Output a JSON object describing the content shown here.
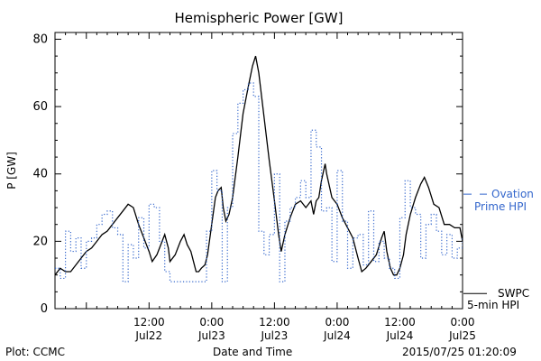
{
  "chart_data": {
    "type": "line",
    "title": "Hemispheric Power [GW]",
    "ylabel": "P [GW]",
    "xlabel": "Date and Time",
    "ylim": [
      0,
      82
    ],
    "yticks": [
      0,
      20,
      40,
      60,
      80
    ],
    "xlim": [
      -18,
      60
    ],
    "xticks": [
      {
        "x": 0,
        "top": "12:00",
        "bottom": "Jul22"
      },
      {
        "x": 12,
        "top": "0:00",
        "bottom": "Jul23"
      },
      {
        "x": 24,
        "top": "12:00",
        "bottom": "Jul23"
      },
      {
        "x": 36,
        "top": "0:00",
        "bottom": "Jul24"
      },
      {
        "x": 48,
        "top": "12:00",
        "bottom": "Jul24"
      },
      {
        "x": 60,
        "top": "0:00",
        "bottom": "Jul25"
      }
    ],
    "series": [
      {
        "name": "SWPC 5-min HPI",
        "color": "#000000",
        "style": "solid",
        "points": [
          [
            -18,
            10
          ],
          [
            -17,
            12
          ],
          [
            -16,
            11
          ],
          [
            -15,
            11
          ],
          [
            -14,
            13
          ],
          [
            -13,
            15
          ],
          [
            -12,
            17
          ],
          [
            -11,
            18
          ],
          [
            -10,
            20
          ],
          [
            -9,
            22
          ],
          [
            -8,
            23
          ],
          [
            -7,
            25
          ],
          [
            -6,
            27
          ],
          [
            -5,
            29
          ],
          [
            -4,
            31
          ],
          [
            -3,
            30
          ],
          [
            -2,
            25
          ],
          [
            -1,
            21
          ],
          [
            0,
            17
          ],
          [
            0.6,
            14
          ],
          [
            1.5,
            16
          ],
          [
            2.5,
            20
          ],
          [
            3,
            22
          ],
          [
            3.7,
            18
          ],
          [
            4,
            14
          ],
          [
            5,
            16
          ],
          [
            6,
            20
          ],
          [
            6.7,
            22
          ],
          [
            7.3,
            19
          ],
          [
            8,
            17
          ],
          [
            8.5,
            14
          ],
          [
            9,
            11
          ],
          [
            9.5,
            11
          ],
          [
            10,
            12
          ],
          [
            10.7,
            13
          ],
          [
            11.2,
            16
          ],
          [
            12,
            25
          ],
          [
            12.7,
            33
          ],
          [
            13.2,
            35
          ],
          [
            13.8,
            36
          ],
          [
            14.2,
            30
          ],
          [
            14.7,
            26
          ],
          [
            15.3,
            28
          ],
          [
            16,
            33
          ],
          [
            17,
            45
          ],
          [
            18,
            58
          ],
          [
            19,
            66
          ],
          [
            19.8,
            72
          ],
          [
            20.4,
            75
          ],
          [
            21,
            70
          ],
          [
            22,
            57
          ],
          [
            23,
            44
          ],
          [
            24,
            32
          ],
          [
            24.8,
            22
          ],
          [
            25.3,
            17
          ],
          [
            26,
            22
          ],
          [
            27,
            27
          ],
          [
            28,
            31
          ],
          [
            29,
            32
          ],
          [
            30,
            30
          ],
          [
            31,
            32
          ],
          [
            31.5,
            28
          ],
          [
            32,
            32
          ],
          [
            32.5,
            33
          ],
          [
            33,
            38
          ],
          [
            33.7,
            43
          ],
          [
            34,
            40
          ],
          [
            35,
            33
          ],
          [
            36,
            31
          ],
          [
            37,
            27
          ],
          [
            38,
            24
          ],
          [
            39,
            21
          ],
          [
            40,
            15
          ],
          [
            40.7,
            11
          ],
          [
            41.5,
            12
          ],
          [
            42.5,
            14
          ],
          [
            43.5,
            16
          ],
          [
            44.5,
            21
          ],
          [
            45,
            23
          ],
          [
            45.5,
            17
          ],
          [
            46.2,
            12
          ],
          [
            46.8,
            10
          ],
          [
            47.4,
            10
          ],
          [
            48,
            12
          ],
          [
            48.7,
            16
          ],
          [
            49.2,
            22
          ],
          [
            50,
            28
          ],
          [
            51,
            33
          ],
          [
            52,
            37
          ],
          [
            52.7,
            39
          ],
          [
            53.5,
            36
          ],
          [
            54.5,
            31
          ],
          [
            55.5,
            30
          ],
          [
            56.5,
            25
          ],
          [
            57.5,
            25
          ],
          [
            58.5,
            24
          ],
          [
            59.5,
            24
          ],
          [
            60,
            20
          ]
        ]
      },
      {
        "name": "Ovation Prime HPI",
        "color": "#3366cc",
        "style": "dotted-step",
        "points": [
          [
            -18,
            12
          ],
          [
            -17,
            9
          ],
          [
            -16,
            23
          ],
          [
            -15,
            17
          ],
          [
            -14,
            21
          ],
          [
            -13,
            12
          ],
          [
            -12,
            20
          ],
          [
            -11,
            21
          ],
          [
            -10,
            25
          ],
          [
            -9,
            28
          ],
          [
            -8,
            29
          ],
          [
            -7,
            24
          ],
          [
            -6,
            22
          ],
          [
            -5,
            8
          ],
          [
            -4,
            19
          ],
          [
            -3,
            15
          ],
          [
            -2,
            27
          ],
          [
            -1,
            18
          ],
          [
            0,
            31
          ],
          [
            1,
            30
          ],
          [
            2,
            20
          ],
          [
            3,
            11
          ],
          [
            4,
            8
          ],
          [
            5,
            8
          ],
          [
            6,
            8
          ],
          [
            7,
            8
          ],
          [
            8,
            8
          ],
          [
            9,
            8
          ],
          [
            10,
            8
          ],
          [
            11,
            23
          ],
          [
            12,
            41
          ],
          [
            13,
            35
          ],
          [
            14,
            8
          ],
          [
            15,
            30
          ],
          [
            16,
            52
          ],
          [
            17,
            61
          ],
          [
            18,
            65
          ],
          [
            19,
            67
          ],
          [
            20,
            63
          ],
          [
            21,
            23
          ],
          [
            22,
            16
          ],
          [
            23,
            22
          ],
          [
            24,
            40
          ],
          [
            25,
            8
          ],
          [
            26,
            26
          ],
          [
            27,
            30
          ],
          [
            28,
            33
          ],
          [
            29,
            38
          ],
          [
            30,
            33
          ],
          [
            31,
            53
          ],
          [
            32,
            48
          ],
          [
            33,
            29
          ],
          [
            34,
            30
          ],
          [
            35,
            14
          ],
          [
            36,
            41
          ],
          [
            37,
            26
          ],
          [
            38,
            12
          ],
          [
            39,
            21
          ],
          [
            40,
            22
          ],
          [
            41,
            13
          ],
          [
            42,
            29
          ],
          [
            43,
            14
          ],
          [
            44,
            20
          ],
          [
            45,
            15
          ],
          [
            46,
            12
          ],
          [
            47,
            9
          ],
          [
            48,
            27
          ],
          [
            49,
            38
          ],
          [
            50,
            30
          ],
          [
            51,
            28
          ],
          [
            52,
            15
          ],
          [
            53,
            25
          ],
          [
            54,
            28
          ],
          [
            55,
            23
          ],
          [
            56,
            16
          ],
          [
            57,
            22
          ],
          [
            58,
            15
          ],
          [
            59,
            18
          ],
          [
            60,
            21
          ]
        ]
      }
    ],
    "legend": [
      {
        "lines": [
          "SWPC",
          "5-min HPI"
        ],
        "color": "#000000",
        "style": "solid"
      },
      {
        "lines": [
          "Ovation",
          "Prime HPI"
        ],
        "color": "#3366cc",
        "style": "dashed"
      }
    ]
  },
  "footer": {
    "plot_source": "Plot: CCMC",
    "timestamp": "2015/07/25 01:20:09"
  }
}
